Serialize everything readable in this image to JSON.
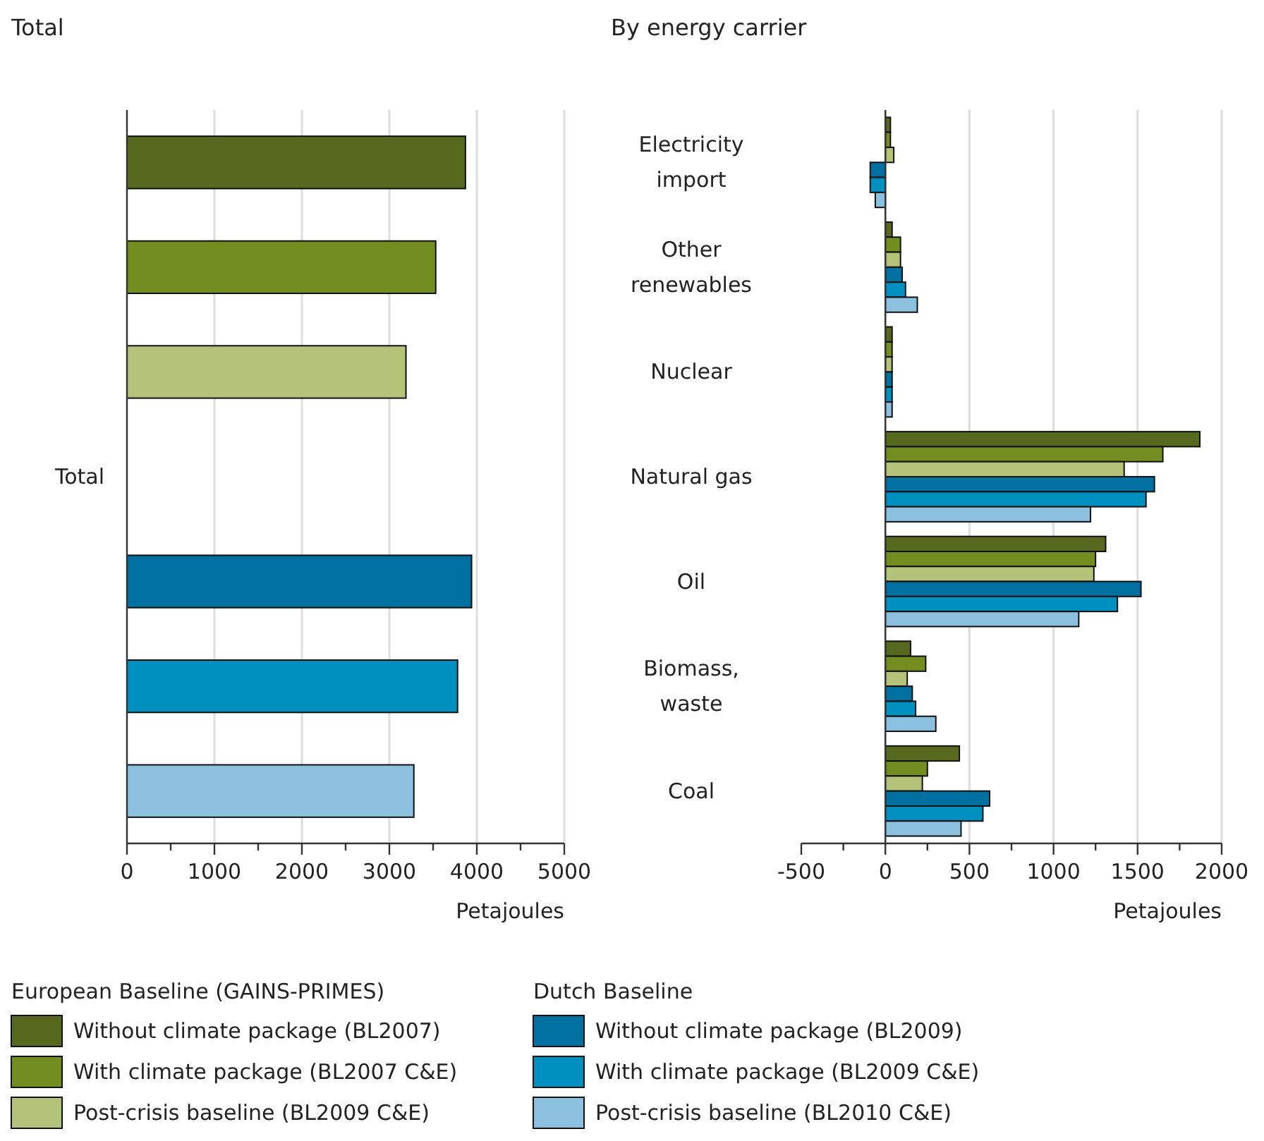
{
  "chart_data": [
    {
      "type": "bar",
      "orientation": "horizontal",
      "title": "Total",
      "xlabel": "Petajoules",
      "categories": [
        "Total"
      ],
      "xlim": [
        0,
        5000
      ],
      "xticks": [
        0,
        {
          "value": 500,
          "label": null
        },
        1000,
        {
          "value": 1500,
          "label": null
        },
        2000,
        {
          "value": 2500,
          "label": null
        },
        3000,
        {
          "value": 3500,
          "label": null
        },
        4000,
        {
          "value": 4500,
          "label": null
        },
        5000
      ],
      "grid": "x",
      "legend": "bottom",
      "annotations": [
        "European Baseline (GAINS-PRIMES)",
        "Dutch Baseline"
      ],
      "series": [
        {
          "name": "Without climate package (BL2007)",
          "color": "#56691f",
          "values": [
            3870
          ]
        },
        {
          "name": "With climate package (BL2007 C&E)",
          "color": "#748d20",
          "values": [
            3530
          ]
        },
        {
          "name": "Post-crisis baseline (BL2009 C&E)",
          "color": "#b5c27a",
          "values": [
            3190
          ]
        },
        {
          "name": "Without climate package (BL2009)",
          "color": "#0070a0",
          "values": [
            3940
          ]
        },
        {
          "name": "With climate package (BL2009 C&E)",
          "color": "#0090c0",
          "values": [
            3780
          ]
        },
        {
          "name": "Post-crisis baseline (BL2010 C&E)",
          "color": "#8bc0de",
          "values": [
            3280
          ]
        }
      ]
    },
    {
      "type": "bar",
      "orientation": "horizontal",
      "title": "By energy carrier",
      "xlabel": "Petajoules",
      "categories": [
        "Electricity import",
        "Other renewables",
        "Nuclear",
        "Natural gas",
        "Oil",
        "Biomass, waste",
        "Coal"
      ],
      "xlim": [
        -500,
        2000
      ],
      "xticks": [
        -500,
        {
          "value": -250,
          "label": null
        },
        0,
        {
          "value": 250,
          "label": null
        },
        500,
        {
          "value": 750,
          "label": null
        },
        1000,
        {
          "value": 1250,
          "label": null
        },
        1500,
        {
          "value": 1750,
          "label": null
        },
        2000
      ],
      "grid": "x",
      "series": [
        {
          "color": "#56691f",
          "values": [
            30,
            40,
            40,
            1870,
            1310,
            150,
            440
          ]
        },
        {
          "color": "#748d20",
          "values": [
            30,
            90,
            40,
            1650,
            1250,
            240,
            250
          ]
        },
        {
          "color": "#b5c27a",
          "values": [
            50,
            90,
            40,
            1420,
            1240,
            130,
            220
          ]
        },
        {
          "color": "#0070a0",
          "values": [
            -90,
            100,
            40,
            1600,
            1520,
            160,
            620
          ]
        },
        {
          "color": "#0090c0",
          "values": [
            -90,
            120,
            40,
            1550,
            1380,
            180,
            580
          ]
        },
        {
          "color": "#8bc0de",
          "values": [
            -60,
            190,
            40,
            1220,
            1150,
            300,
            450
          ]
        }
      ]
    }
  ]
}
